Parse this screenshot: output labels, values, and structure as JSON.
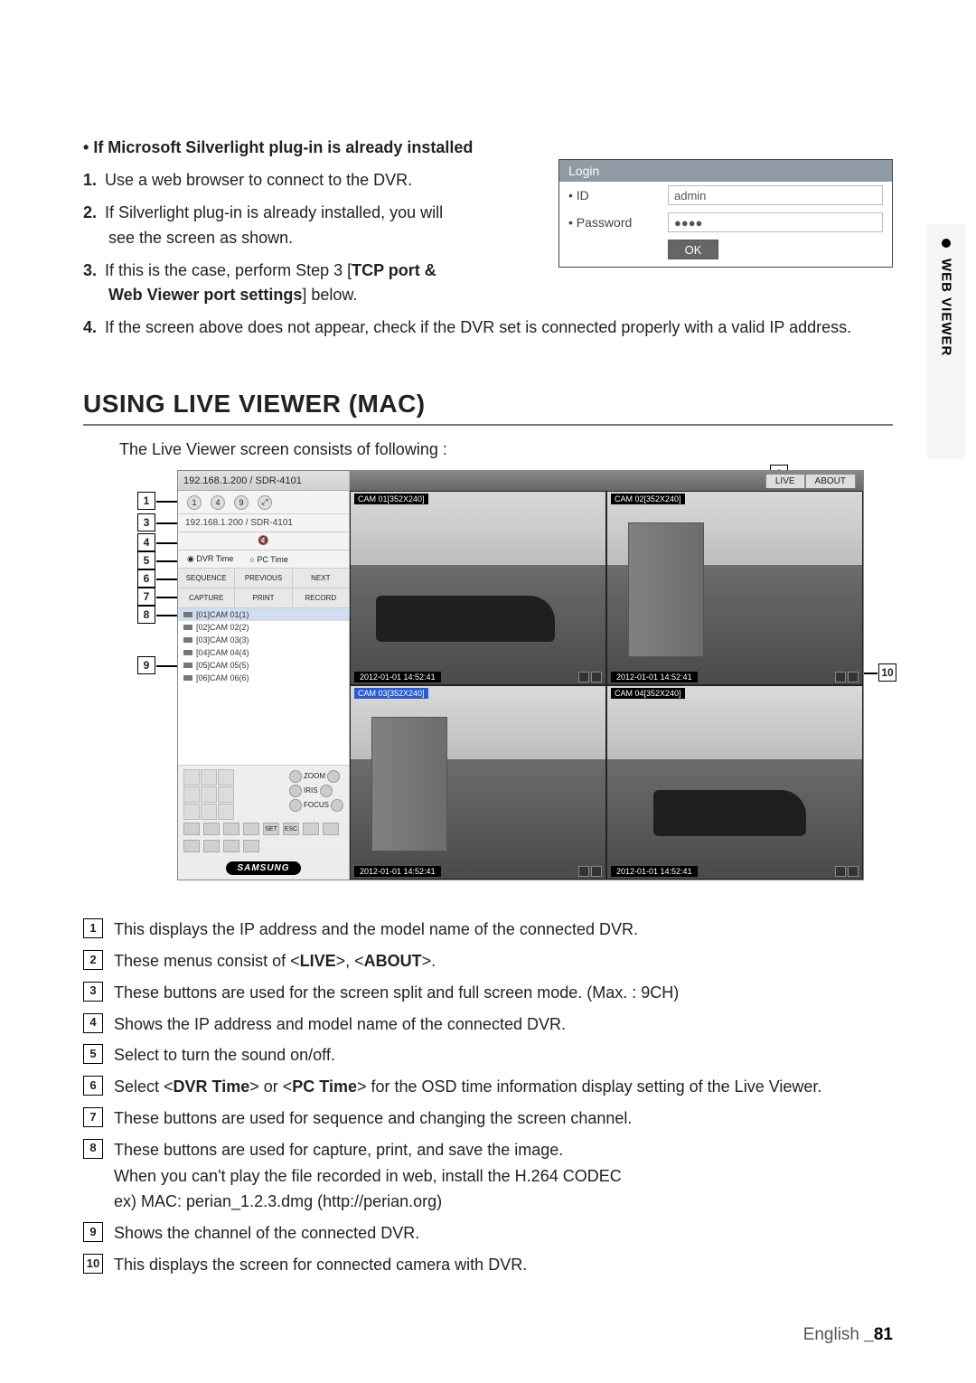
{
  "sideTab": "WEB VIEWER",
  "lead": "If Microsoft Silverlight plug-in is already installed",
  "steps": [
    {
      "n": "1.",
      "t": "Use a web browser to connect to the DVR."
    },
    {
      "n": "2.",
      "t": "If Silverlight plug-in is already installed, you will see the screen as shown."
    },
    {
      "n": "3.",
      "t": "If this is the case, perform Step 3 [",
      "b": "TCP port & Web Viewer port settings",
      "a": "] below."
    },
    {
      "n": "4.",
      "t": "If the screen above does not appear, check if the DVR set is connected properly with a valid IP address."
    }
  ],
  "login": {
    "title": "Login",
    "idLabel": "ID",
    "idValue": "admin",
    "pwLabel": "Password",
    "pwValue": "●●●●",
    "ok": "OK"
  },
  "sectionTitle": "USING LIVE VIEWER (MAC)",
  "sectionIntro": "The Live Viewer screen consists of following :",
  "shot": {
    "tabbar": "192.168.1.200 / SDR-4101",
    "splitLabels": [
      "1",
      "4",
      "9"
    ],
    "infoRow": "192.168.1.200  / SDR-4101",
    "radios": [
      "DVR Time",
      "PC Time"
    ],
    "seqRow": [
      "SEQUENCE",
      "PREVIOUS",
      "NEXT"
    ],
    "capRow": [
      "CAPTURE",
      "PRINT",
      "RECORD"
    ],
    "cams": [
      "[01]CAM 01(1)",
      "[02]CAM 02(2)",
      "[03]CAM 03(3)",
      "[04]CAM 04(4)",
      "[05]CAM 05(5)",
      "[06]CAM 06(6)"
    ],
    "samsung": "SAMSUNG",
    "mainTabs": [
      "LIVE",
      "ABOUT"
    ],
    "cells": [
      {
        "label": "CAM 01[352X240]",
        "ts": "2012-01-01 14:52:41"
      },
      {
        "label": "CAM 02[352X240]",
        "ts": "2012-01-01 14:52:41"
      },
      {
        "label": "CAM 03[352X240]",
        "ts": "2012-01-01 14:52:41"
      },
      {
        "label": "CAM 04[352X240]",
        "ts": "2012-01-01 14:52:41"
      }
    ],
    "ptz": {
      "zoom": "ZOOM",
      "iris": "IRIS",
      "focus": "FOCUS",
      "set": "SET",
      "esc": "ESC"
    }
  },
  "legend": [
    {
      "n": "1",
      "t": "This displays the IP address and the model name of the connected DVR."
    },
    {
      "n": "2",
      "html": "These menus consist of <<b>LIVE</b>>, <<b>ABOUT</b>>."
    },
    {
      "n": "3",
      "t": "These buttons are used for the screen split and full screen mode. (Max. : 9CH)"
    },
    {
      "n": "4",
      "t": "Shows the IP address and model name of the connected DVR."
    },
    {
      "n": "5",
      "t": "Select to turn the sound on/off."
    },
    {
      "n": "6",
      "html": "Select <<b>DVR Time</b>> or <<b>PC Time</b>> for the OSD time information display setting of the Live Viewer."
    },
    {
      "n": "7",
      "t": "These buttons are used for sequence and changing the screen channel."
    },
    {
      "n": "8",
      "t": "These buttons are used for capture, print, and save the image.\nWhen you can't play the file recorded in web, install the H.264 CODEC\nex) MAC: perian_1.2.3.dmg (http://perian.org)"
    },
    {
      "n": "9",
      "t": "Shows the channel of the connected DVR."
    },
    {
      "n": "10",
      "t": "This displays the screen for connected camera with DVR."
    }
  ],
  "footer": {
    "lang": "English",
    "page": "_81"
  }
}
